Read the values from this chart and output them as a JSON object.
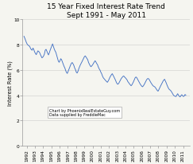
{
  "title": "15 Year Fixed Interest Rate Trend\nSept 1991 - May 2011",
  "ylabel": "Interest Rate (%)",
  "xlim": [
    1991.5,
    2011.8
  ],
  "ylim": [
    0,
    10
  ],
  "yticks": [
    0,
    2,
    4,
    6,
    8,
    10
  ],
  "xtick_years": [
    1992,
    1993,
    1994,
    1995,
    1996,
    1997,
    1998,
    1999,
    2000,
    2001,
    2002,
    2003,
    2004,
    2005,
    2006,
    2007,
    2008,
    2009,
    2010,
    2011
  ],
  "line_color": "#4472C4",
  "background_color": "#f5f5f0",
  "plot_bg_color": "#f5f5f0",
  "annotation": "Chart by PhoenixRealEstateGuy.com\nData supplied by FreddieMac",
  "title_fontsize": 6.5,
  "ylabel_fontsize": 4.8,
  "tick_fontsize": 4.2,
  "annotation_fontsize": 3.5,
  "rates": [
    8.65,
    8.5,
    8.32,
    8.15,
    8.02,
    7.95,
    7.9,
    7.85,
    7.7,
    7.6,
    7.55,
    7.72,
    7.6,
    7.42,
    7.3,
    7.2,
    7.35,
    7.5,
    7.45,
    7.38,
    7.22,
    7.08,
    6.95,
    7.0,
    7.1,
    7.25,
    7.55,
    7.62,
    7.48,
    7.3,
    7.18,
    7.35,
    7.55,
    7.72,
    7.9,
    8.05,
    7.85,
    7.65,
    7.5,
    7.38,
    7.15,
    6.9,
    6.7,
    6.6,
    6.72,
    6.88,
    6.8,
    6.62,
    6.45,
    6.28,
    6.15,
    5.95,
    5.8,
    5.72,
    5.88,
    6.05,
    6.22,
    6.38,
    6.52,
    6.58,
    6.48,
    6.35,
    6.15,
    6.02,
    5.82,
    5.75,
    5.88,
    6.08,
    6.25,
    6.4,
    6.52,
    6.65,
    6.78,
    6.92,
    7.05,
    7.1,
    7.0,
    6.9,
    6.8,
    6.58,
    6.45,
    6.32,
    6.25,
    6.32,
    6.4,
    6.52,
    6.62,
    6.72,
    6.62,
    6.5,
    6.4,
    6.22,
    6.08,
    5.98,
    5.82,
    5.7,
    5.52,
    5.38,
    5.3,
    5.22,
    5.15,
    5.08,
    5.02,
    5.12,
    5.25,
    5.4,
    5.52,
    5.62,
    5.7,
    5.58,
    5.45,
    5.32,
    5.18,
    5.02,
    4.9,
    4.87,
    4.95,
    5.07,
    5.2,
    5.32,
    5.4,
    5.48,
    5.52,
    5.44,
    5.38,
    5.3,
    5.22,
    5.08,
    5.0,
    4.9,
    4.82,
    4.75,
    4.82,
    4.94,
    5.07,
    5.22,
    5.38,
    5.44,
    5.38,
    5.26,
    5.14,
    5.01,
    4.9,
    4.8,
    4.72,
    4.67,
    4.74,
    4.84,
    4.97,
    5.1,
    5.22,
    5.3,
    5.32,
    5.26,
    5.14,
    5.02,
    4.92,
    4.82,
    4.74,
    4.7,
    4.66,
    4.58,
    4.48,
    4.38,
    4.32,
    4.44,
    4.58,
    4.72,
    4.84,
    4.97,
    5.1,
    5.2,
    5.26,
    5.12,
    4.97,
    4.8,
    4.65,
    4.52,
    4.44,
    4.4,
    4.32,
    4.22,
    4.1,
    4.0,
    3.94,
    3.92,
    3.9,
    4.02,
    4.12,
    4.0,
    3.92,
    3.87,
    3.97,
    4.04,
    3.97,
    3.9,
    3.94,
    4.06,
    4.0
  ]
}
